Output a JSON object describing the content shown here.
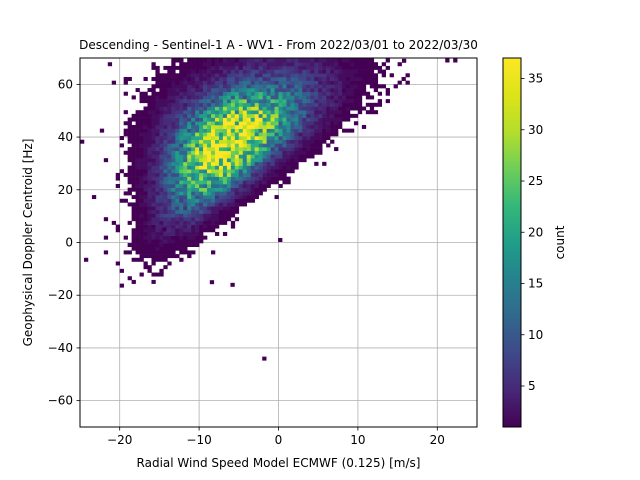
{
  "chart_data": {
    "type": "heatmap",
    "title": "Descending - Sentinel-1 A - WV1 - From 2022/03/01 to 2022/03/30",
    "xlabel": "Radial Wind Speed Model ECMWF (0.125) [m/s]",
    "ylabel": "Geophysical Doppler Centroid [Hz]",
    "xlim": [
      -25,
      25
    ],
    "ylim": [
      -70,
      70
    ],
    "xticks": [
      -20,
      -10,
      0,
      10,
      20
    ],
    "yticks": [
      -60,
      -40,
      -20,
      0,
      20,
      40,
      60
    ],
    "grid": true,
    "colormap": "viridis",
    "colorbar": {
      "label": "count",
      "range": [
        1,
        37
      ],
      "ticks": [
        5,
        10,
        15,
        20,
        25,
        30,
        35
      ]
    },
    "density_model": {
      "bin_width_x": 0.5,
      "bin_height_y": 1.4,
      "peak_count": 37,
      "center_x": -6.5,
      "center_y": 37,
      "slope_x_per_y": 0.21,
      "sigma_along_y": 15,
      "sigma_across_x": 2.6,
      "support_y": [
        -17,
        70
      ]
    },
    "outliers": [
      {
        "x": -1.8,
        "y": -44
      },
      {
        "x": -5.8,
        "y": -16
      },
      {
        "x": -8.4,
        "y": -15
      },
      {
        "x": 15.8,
        "y": 69
      },
      {
        "x": 0.2,
        "y": 1
      },
      {
        "x": -14.4,
        "y": 5
      }
    ]
  }
}
